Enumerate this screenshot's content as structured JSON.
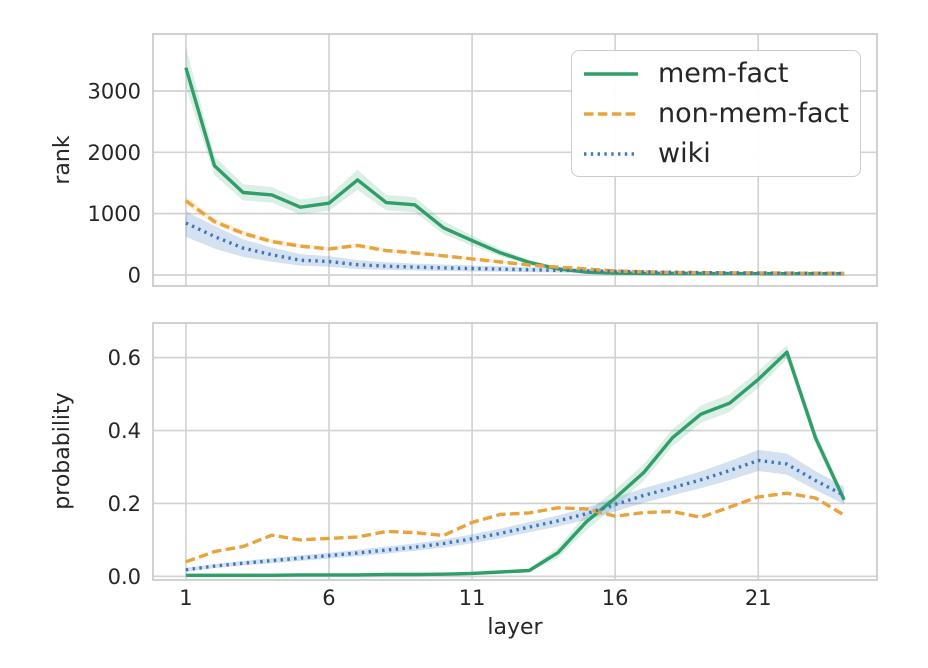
{
  "figure": {
    "background": "#ffffff",
    "text_color": "#262626",
    "grid_color": "#d3d3d3",
    "spine_color": "#cccccc"
  },
  "chart_data": [
    {
      "type": "line",
      "title": "",
      "ylabel": "rank",
      "xlabel": "",
      "grid": true,
      "legend_position": "upper right",
      "x": [
        1,
        2,
        3,
        4,
        5,
        6,
        7,
        8,
        9,
        10,
        11,
        12,
        13,
        14,
        15,
        16,
        17,
        18,
        19,
        20,
        21,
        22,
        23,
        24
      ],
      "xticks": [
        1,
        6,
        11,
        16,
        21
      ],
      "xtick_labels": [
        "1",
        "6",
        "11",
        "16",
        "21"
      ],
      "show_xtick_labels": false,
      "yticks": [
        0,
        1000,
        2000,
        3000
      ],
      "ytick_labels": [
        "0",
        "1000",
        "2000",
        "3000"
      ],
      "xlim": [
        -0.15,
        25.15
      ],
      "ylim": [
        -180,
        3930
      ],
      "series": [
        {
          "name": "mem-fact",
          "color": "#2f9e68",
          "line_style": "solid",
          "band_opacity": 0.17,
          "values": [
            3380,
            1780,
            1345,
            1305,
            1105,
            1170,
            1550,
            1180,
            1145,
            770,
            560,
            360,
            205,
            100,
            45,
            28,
            25,
            24,
            23,
            22,
            22,
            21,
            20,
            20
          ],
          "band_lo": [
            3060,
            1625,
            1215,
            1180,
            985,
            1050,
            1385,
            1055,
            1020,
            668,
            478,
            302,
            168,
            80,
            30,
            18,
            15,
            14,
            13,
            12,
            12,
            11,
            11,
            11
          ],
          "band_hi": [
            3720,
            1935,
            1480,
            1435,
            1230,
            1295,
            1715,
            1305,
            1270,
            878,
            645,
            422,
            246,
            125,
            62,
            40,
            36,
            34,
            33,
            32,
            32,
            31,
            30,
            30
          ]
        },
        {
          "name": "non-mem-fact",
          "color": "#e9a33c",
          "line_style": "dashed",
          "band_opacity": 0.15,
          "values": [
            1210,
            870,
            680,
            545,
            470,
            425,
            480,
            398,
            360,
            312,
            262,
            212,
            163,
            128,
            98,
            66,
            50,
            42,
            38,
            35,
            33,
            31,
            29,
            27
          ],
          "band_lo": [
            1135,
            810,
            630,
            505,
            432,
            392,
            444,
            367,
            331,
            286,
            240,
            194,
            149,
            116,
            88,
            59,
            44,
            37,
            33,
            30,
            28,
            26,
            25,
            23
          ],
          "band_hi": [
            1285,
            930,
            730,
            585,
            508,
            458,
            516,
            429,
            389,
            338,
            284,
            230,
            177,
            140,
            108,
            73,
            56,
            47,
            43,
            40,
            38,
            36,
            33,
            31
          ]
        },
        {
          "name": "wiki",
          "color": "#3d76ba",
          "line_style": "dotted",
          "band_opacity": 0.22,
          "values": [
            848,
            628,
            438,
            330,
            240,
            220,
            168,
            143,
            128,
            116,
            105,
            95,
            85,
            76,
            67,
            58,
            50,
            43,
            38,
            34,
            31,
            28,
            26,
            24
          ],
          "band_lo": [
            620,
            430,
            295,
            215,
            152,
            135,
            98,
            82,
            72,
            64,
            57,
            51,
            45,
            40,
            35,
            30,
            26,
            22,
            19,
            17,
            15,
            14,
            13,
            12
          ],
          "band_hi": [
            1035,
            800,
            580,
            448,
            340,
            308,
            242,
            207,
            186,
            170,
            155,
            141,
            127,
            114,
            101,
            89,
            77,
            67,
            59,
            53,
            48,
            44,
            41,
            38
          ]
        }
      ]
    },
    {
      "type": "line",
      "title": "",
      "ylabel": "probability",
      "xlabel": "layer",
      "grid": true,
      "legend_position": "none",
      "x": [
        1,
        2,
        3,
        4,
        5,
        6,
        7,
        8,
        9,
        10,
        11,
        12,
        13,
        14,
        15,
        16,
        17,
        18,
        19,
        20,
        21,
        22,
        23,
        24
      ],
      "xticks": [
        1,
        6,
        11,
        16,
        21
      ],
      "xtick_labels": [
        "1",
        "6",
        "11",
        "16",
        "21"
      ],
      "show_xtick_labels": true,
      "yticks": [
        0.0,
        0.2,
        0.4,
        0.6
      ],
      "ytick_labels": [
        "0.0",
        "0.2",
        "0.4",
        "0.6"
      ],
      "xlim": [
        -0.15,
        25.15
      ],
      "ylim": [
        -0.01,
        0.695
      ],
      "series": [
        {
          "name": "mem-fact",
          "color": "#2f9e68",
          "line_style": "solid",
          "band_opacity": 0.17,
          "values": [
            0.003,
            0.003,
            0.003,
            0.003,
            0.004,
            0.004,
            0.004,
            0.005,
            0.005,
            0.006,
            0.008,
            0.012,
            0.016,
            0.065,
            0.15,
            0.215,
            0.285,
            0.38,
            0.445,
            0.475,
            0.54,
            0.615,
            0.38,
            0.21
          ],
          "band_lo": [
            0.002,
            0.002,
            0.002,
            0.002,
            0.003,
            0.003,
            0.003,
            0.004,
            0.004,
            0.005,
            0.006,
            0.009,
            0.012,
            0.05,
            0.127,
            0.192,
            0.262,
            0.357,
            0.421,
            0.451,
            0.517,
            0.596,
            0.362,
            0.197
          ],
          "band_hi": [
            0.004,
            0.004,
            0.004,
            0.004,
            0.005,
            0.005,
            0.006,
            0.007,
            0.007,
            0.008,
            0.011,
            0.016,
            0.021,
            0.08,
            0.173,
            0.238,
            0.308,
            0.403,
            0.469,
            0.499,
            0.563,
            0.634,
            0.398,
            0.223
          ]
        },
        {
          "name": "non-mem-fact",
          "color": "#e9a33c",
          "line_style": "dashed",
          "band_opacity": 0,
          "values": [
            0.04,
            0.068,
            0.082,
            0.113,
            0.1,
            0.104,
            0.108,
            0.123,
            0.12,
            0.112,
            0.148,
            0.17,
            0.174,
            0.188,
            0.185,
            0.165,
            0.175,
            0.178,
            0.162,
            0.19,
            0.218,
            0.228,
            0.215,
            0.168
          ],
          "band_lo": null,
          "band_hi": null
        },
        {
          "name": "wiki",
          "color": "#3d76ba",
          "line_style": "dotted",
          "band_opacity": 0.22,
          "values": [
            0.018,
            0.028,
            0.036,
            0.043,
            0.05,
            0.057,
            0.064,
            0.072,
            0.08,
            0.09,
            0.103,
            0.118,
            0.135,
            0.152,
            0.172,
            0.197,
            0.222,
            0.243,
            0.265,
            0.29,
            0.318,
            0.308,
            0.263,
            0.222
          ],
          "band_lo": [
            0.013,
            0.022,
            0.03,
            0.036,
            0.042,
            0.049,
            0.055,
            0.062,
            0.07,
            0.079,
            0.091,
            0.105,
            0.121,
            0.137,
            0.155,
            0.178,
            0.202,
            0.222,
            0.242,
            0.264,
            0.289,
            0.279,
            0.237,
            0.198
          ],
          "band_hi": [
            0.023,
            0.034,
            0.042,
            0.05,
            0.058,
            0.065,
            0.073,
            0.082,
            0.09,
            0.101,
            0.115,
            0.131,
            0.149,
            0.167,
            0.189,
            0.216,
            0.242,
            0.264,
            0.288,
            0.316,
            0.347,
            0.337,
            0.289,
            0.246
          ]
        }
      ]
    }
  ]
}
